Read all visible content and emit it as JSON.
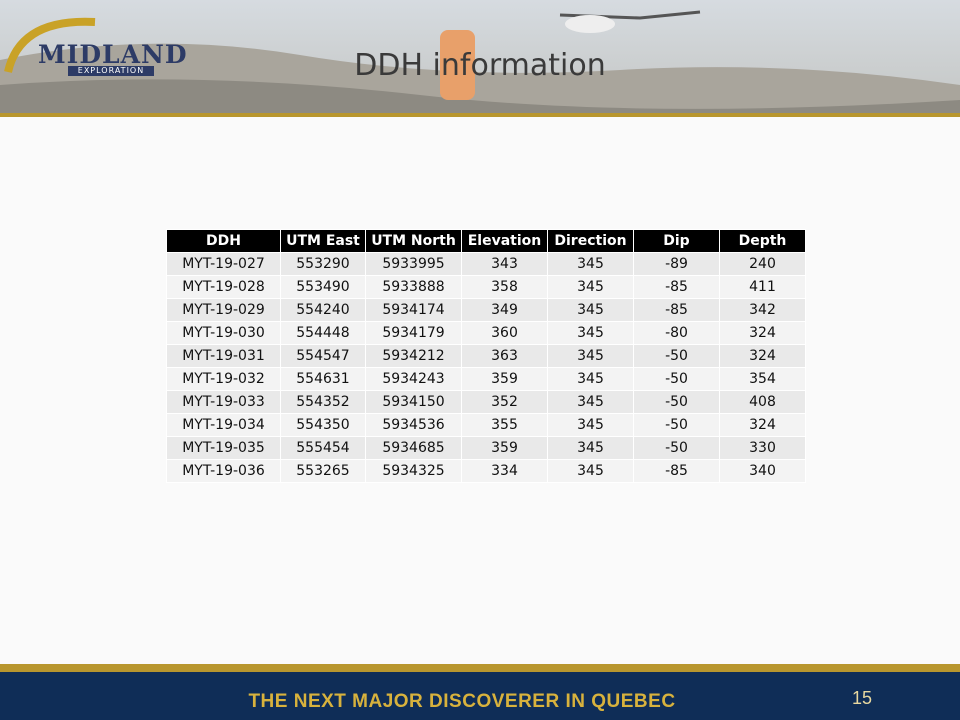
{
  "header": {
    "logo": {
      "name": "MIDLAND",
      "subtitle": "EXPLORATION"
    },
    "title": "DDH information"
  },
  "table": {
    "columns": [
      "DDH",
      "UTM East",
      "UTM North",
      "Elevation",
      "Direction",
      "Dip",
      "Depth"
    ],
    "rows": [
      [
        "MYT-19-027",
        553290,
        5933995,
        343,
        345,
        -89,
        240
      ],
      [
        "MYT-19-028",
        553490,
        5933888,
        358,
        345,
        -85,
        411
      ],
      [
        "MYT-19-029",
        554240,
        5934174,
        349,
        345,
        -85,
        342
      ],
      [
        "MYT-19-030",
        554448,
        5934179,
        360,
        345,
        -80,
        324
      ],
      [
        "MYT-19-031",
        554547,
        5934212,
        363,
        345,
        -50,
        324
      ],
      [
        "MYT-19-032",
        554631,
        5934243,
        359,
        345,
        -50,
        354
      ],
      [
        "MYT-19-033",
        554352,
        5934150,
        352,
        345,
        -50,
        408
      ],
      [
        "MYT-19-034",
        554350,
        5934536,
        355,
        345,
        -50,
        324
      ],
      [
        "MYT-19-035",
        555454,
        5934685,
        359,
        345,
        -50,
        330
      ],
      [
        "MYT-19-036",
        553265,
        5934325,
        334,
        345,
        -85,
        340
      ]
    ]
  },
  "footer": {
    "tagline": "THE NEXT MAJOR DISCOVERER IN QUEBEC",
    "page_number": "15"
  }
}
